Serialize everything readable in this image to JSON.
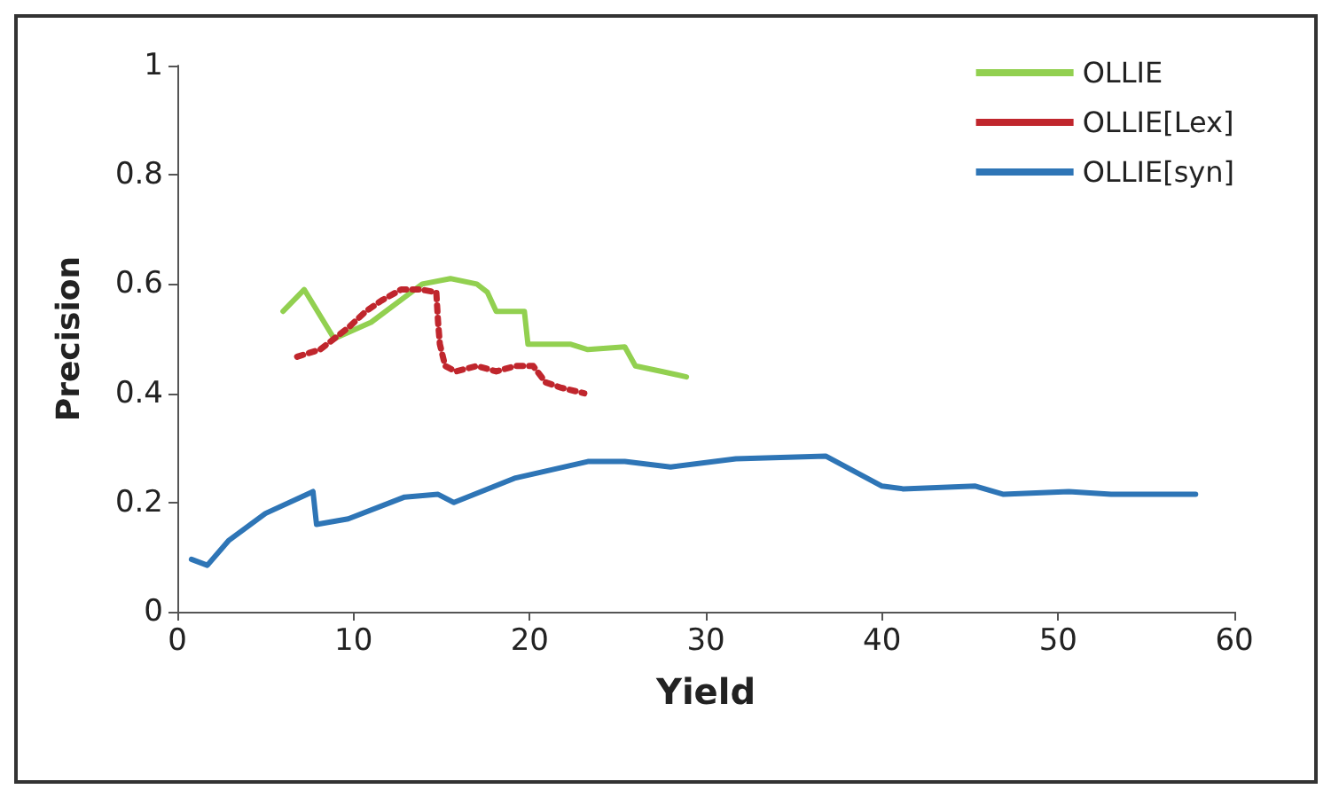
{
  "chart_data": {
    "type": "line",
    "xlabel": "Yield",
    "ylabel": "Precision",
    "xlim": [
      0,
      60
    ],
    "xticks": [
      0,
      10,
      20,
      30,
      40,
      50,
      60
    ],
    "ylim": [
      0,
      1
    ],
    "yticks": [
      0,
      0.2,
      0.4,
      0.6,
      0.8,
      1
    ],
    "grid": false,
    "legend": "top right",
    "marker": "none",
    "series": [
      {
        "name": "OLLIE",
        "color": "#92d050",
        "line_style": "solid",
        "x": [
          6,
          7.2,
          8.9,
          11,
          13.9,
          15.5,
          17,
          17.6,
          18.1,
          19.7,
          19.9,
          22.3,
          23.3,
          25.4,
          26,
          27.5,
          28.9
        ],
        "values": [
          0.55,
          0.59,
          0.5,
          0.53,
          0.6,
          0.61,
          0.6,
          0.585,
          0.55,
          0.55,
          0.49,
          0.49,
          0.48,
          0.485,
          0.45,
          0.44,
          0.43
        ]
      },
      {
        "name": "OLLIE[Lex]",
        "color": "#c0262d",
        "line_style": "dotted",
        "x": [
          6.8,
          8.1,
          9.7,
          10.7,
          11.6,
          12.7,
          13.8,
          14.7,
          14.8,
          14.9,
          15.2,
          15.8,
          17,
          18.1,
          19.2,
          20.2,
          20.9,
          21.8,
          23.1
        ],
        "values": [
          0.467,
          0.48,
          0.52,
          0.55,
          0.57,
          0.59,
          0.59,
          0.585,
          0.53,
          0.49,
          0.45,
          0.44,
          0.45,
          0.44,
          0.45,
          0.45,
          0.42,
          0.41,
          0.4
        ]
      },
      {
        "name": "OLLIE[syn]",
        "color": "#2e75b6",
        "line_style": "solid",
        "x": [
          0.8,
          1.7,
          2.9,
          5,
          7.7,
          7.9,
          9.7,
          12.9,
          14.8,
          15.7,
          19.2,
          23.3,
          25.4,
          28,
          31.7,
          36.8,
          40,
          41.2,
          45.3,
          46.9,
          50.6,
          53,
          56.9,
          57.8
        ],
        "values": [
          0.096,
          0.085,
          0.13,
          0.18,
          0.22,
          0.16,
          0.17,
          0.21,
          0.215,
          0.2,
          0.245,
          0.275,
          0.275,
          0.265,
          0.28,
          0.285,
          0.23,
          0.225,
          0.23,
          0.215,
          0.22,
          0.215,
          0.215,
          0.215
        ]
      }
    ]
  }
}
